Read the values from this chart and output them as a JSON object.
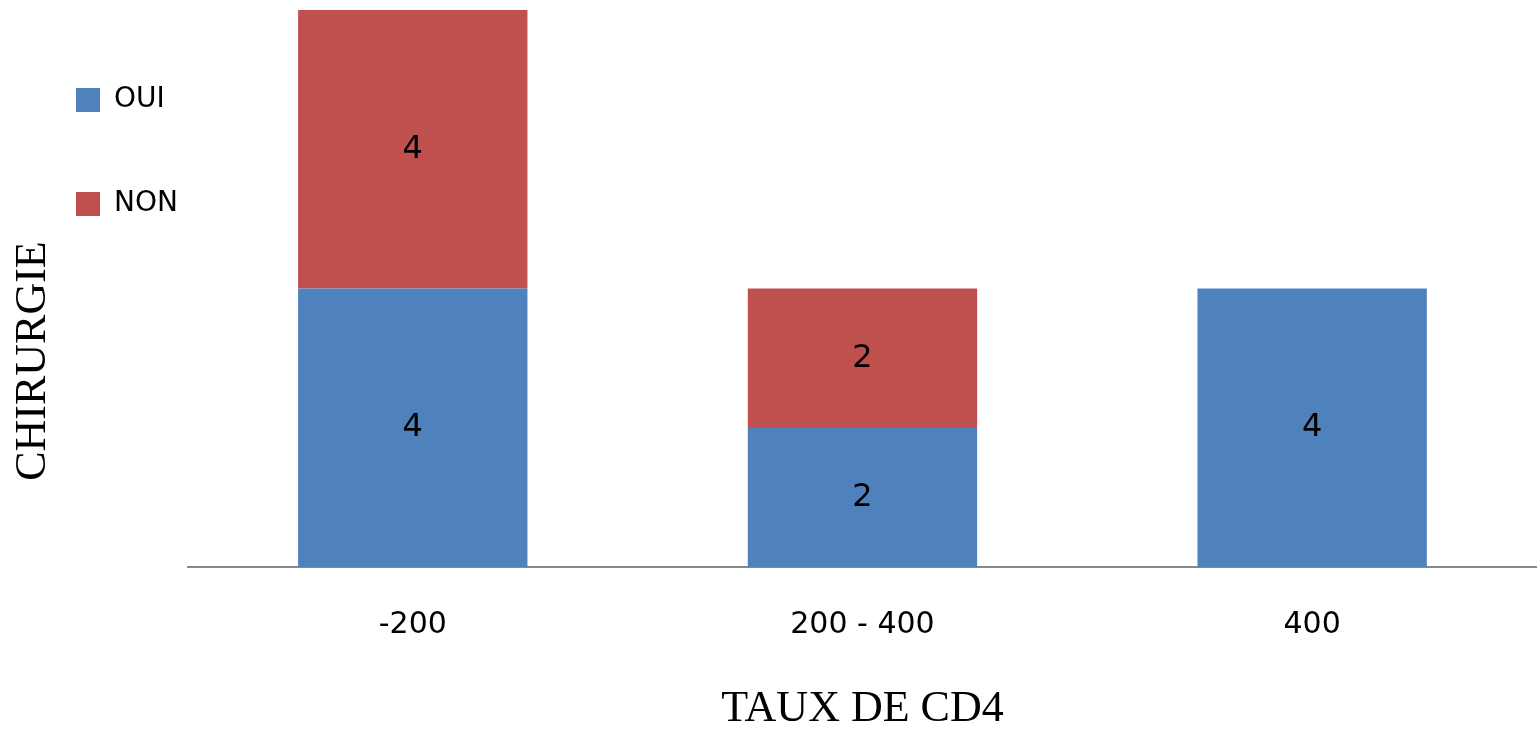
{
  "chart_data": {
    "type": "bar",
    "stacked": true,
    "data_labels": true,
    "xlabel": "TAUX DE CD4",
    "ylabel": "CHIRURGIE",
    "legend": "top left",
    "categories": [
      "-200",
      "200 - 400",
      "400"
    ],
    "series": [
      {
        "name": "OUI",
        "color": "#4f81bd",
        "values": [
          4,
          2,
          4
        ]
      },
      {
        "name": "NON",
        "color": "#c0504d",
        "values": [
          4,
          2,
          null
        ]
      }
    ]
  }
}
